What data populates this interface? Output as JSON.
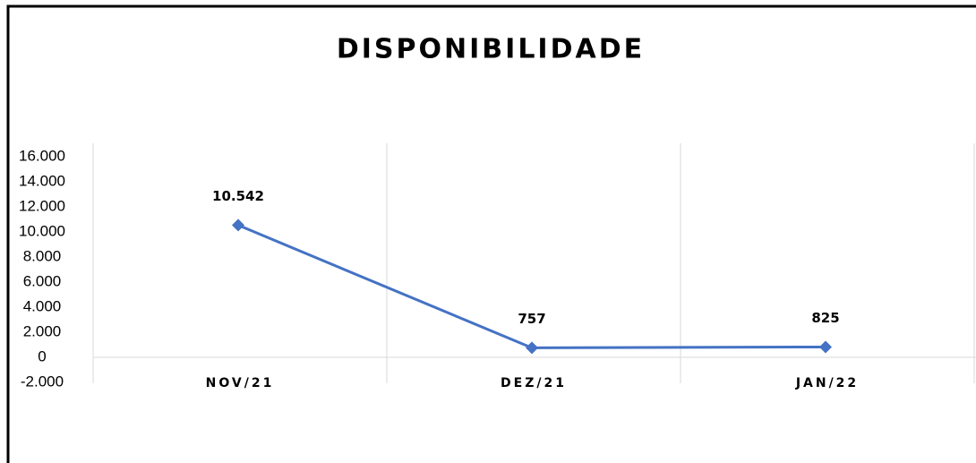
{
  "chart_data": {
    "type": "line",
    "title": "DISPONIBILIDADE",
    "categories": [
      "NOV/21",
      "DEZ/21",
      "JAN/22"
    ],
    "series": [
      {
        "name": "DISPONIBILIDADE",
        "color": "#4472c4",
        "values": [
          10542,
          757,
          825
        ],
        "value_labels": [
          "10.542",
          "757",
          "825"
        ]
      }
    ],
    "ylim": [
      -2000,
      16000
    ],
    "yticks": [
      {
        "value": -2000,
        "label": "-2.000"
      },
      0,
      {
        "value": 2000,
        "label": "2.000"
      },
      {
        "value": 4000,
        "label": "4.000"
      },
      {
        "value": 6000,
        "label": "6.000"
      },
      {
        "value": 8000,
        "label": "8.000"
      },
      {
        "value": 10000,
        "label": "10.000"
      },
      {
        "value": 12000,
        "label": "12.000"
      },
      {
        "value": 14000,
        "label": "14.000"
      },
      {
        "value": 16000,
        "label": "16.000"
      }
    ]
  }
}
